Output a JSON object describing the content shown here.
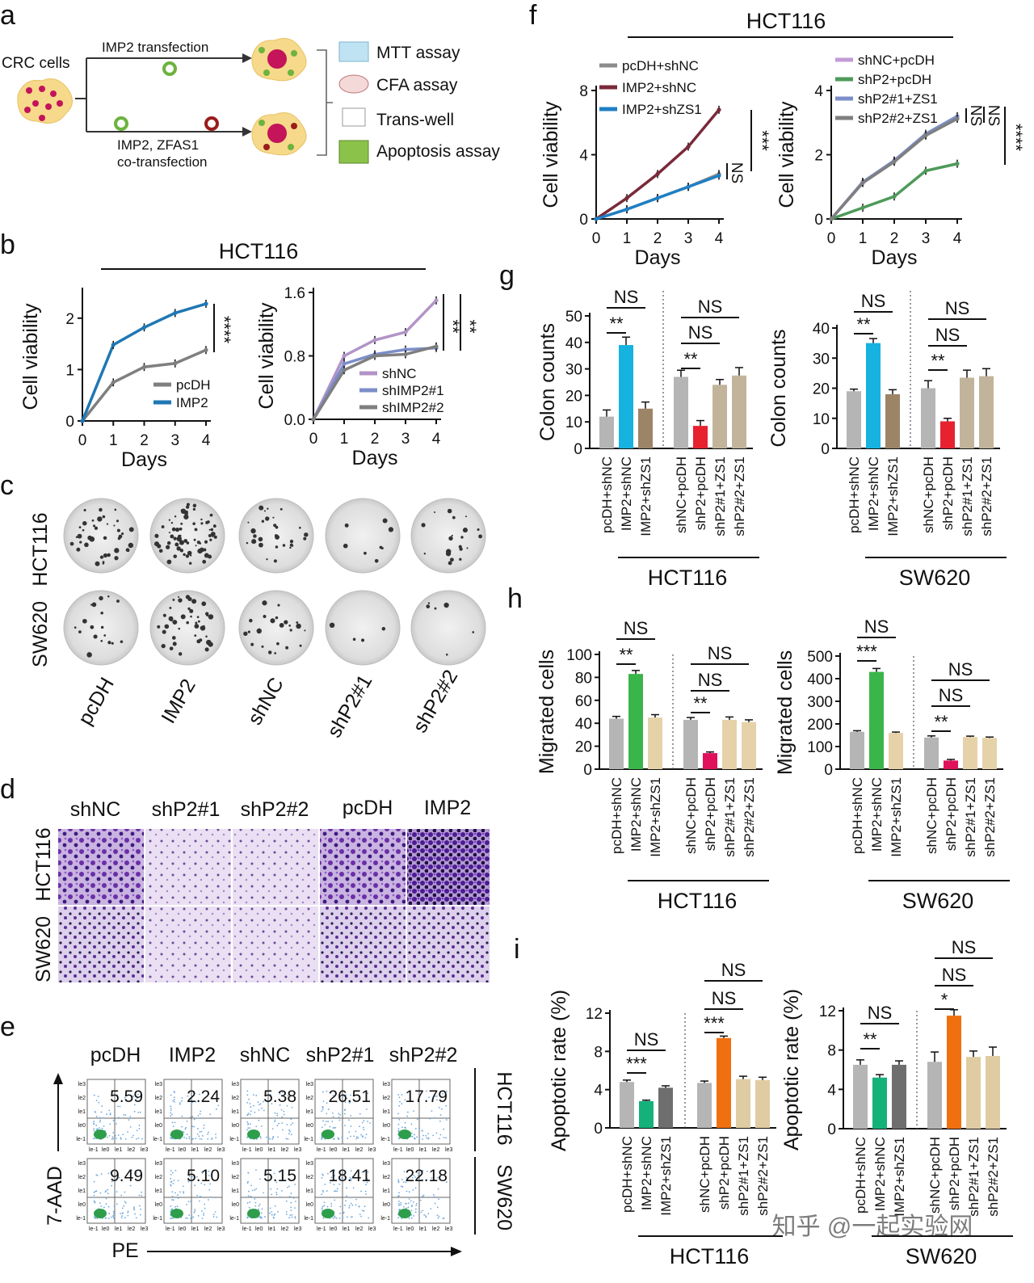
{
  "panels": {
    "a": "a",
    "b": "b",
    "c": "c",
    "d": "d",
    "e": "e",
    "f": "f",
    "g": "g",
    "h": "h",
    "i": "i"
  },
  "schematic": {
    "crc_label": "CRC cells",
    "transfection_top": "IMP2 transfection",
    "transfection_bottom_1": "IMP2, ZFAS1",
    "transfection_bottom_2": "co-transfection",
    "assays": [
      "MTT assay",
      "CFA assay",
      "Trans-well",
      "Apoptosis assay"
    ]
  },
  "common": {
    "cell_viability": "Cell viability",
    "days": "Days",
    "colon_counts": "Colon counts",
    "migrated_cells": "Migrated cells",
    "apoptotic_rate": "Apoptotic rate (%)",
    "hct116": "HCT116",
    "sw620": "SW620",
    "axis_7aad": "7-AAD",
    "axis_pe": "PE",
    "flow_ticks_x": [
      "le-1",
      "le0",
      "le1",
      "le2",
      "le3"
    ],
    "flow_ticks_y": [
      "le3",
      "le2",
      "le1",
      "le0",
      "le-1"
    ]
  },
  "colony_labels": [
    "pcDH",
    "IMP2",
    "shNC",
    "shP2#1",
    "shP2#2"
  ],
  "transwell_labels": [
    "shNC",
    "shP2#1",
    "shP2#2",
    "pcDH",
    "IMP2"
  ],
  "flow": {
    "labels": [
      "pcDH",
      "IMP2",
      "shNC",
      "shP2#1",
      "shP2#2"
    ],
    "hct116": [
      "5.59",
      "2.24",
      "5.38",
      "26.51",
      "17.79"
    ],
    "sw620": [
      "9.49",
      "5.10",
      "5.15",
      "18.41",
      "22.18"
    ]
  },
  "watermark": "知乎 @一起实验网",
  "chart_data": [
    {
      "id": "b-left",
      "type": "line",
      "title": "HCT116",
      "xlabel": "Days",
      "ylabel": "Cell viability",
      "x": [
        0,
        1,
        2,
        3,
        4
      ],
      "ylim": [
        0,
        2.5
      ],
      "yticks": [
        "0",
        "1",
        "2"
      ],
      "series": [
        {
          "name": "pcDH",
          "color": "#7f7f7f",
          "values": [
            0,
            0.75,
            1.05,
            1.12,
            1.38
          ]
        },
        {
          "name": "IMP2",
          "color": "#1f77b4",
          "values": [
            0,
            1.48,
            1.82,
            2.1,
            2.28
          ]
        }
      ],
      "significance": "****"
    },
    {
      "id": "b-right",
      "type": "line",
      "xlabel": "Days",
      "ylabel": "Cell viability",
      "x": [
        0,
        1,
        2,
        3,
        4
      ],
      "ylim": [
        0,
        1.6
      ],
      "yticks": [
        "0.0",
        "0.8",
        "1.6"
      ],
      "series": [
        {
          "name": "shNC",
          "color": "#b294c7",
          "values": [
            0,
            0.8,
            1.0,
            1.1,
            1.5
          ]
        },
        {
          "name": "shIMP2#1",
          "color": "#7b8ec9",
          "values": [
            0,
            0.7,
            0.82,
            0.88,
            0.9
          ]
        },
        {
          "name": "shIMP2#2",
          "color": "#7f7f7f",
          "values": [
            0,
            0.62,
            0.8,
            0.82,
            0.92
          ]
        }
      ],
      "significance": [
        "**",
        "**"
      ]
    },
    {
      "id": "f-left",
      "type": "line",
      "title": "HCT116",
      "xlabel": "Days",
      "ylabel": "Cell viability",
      "x": [
        0,
        1,
        2,
        3,
        4
      ],
      "ylim": [
        0,
        8
      ],
      "yticks": [
        "0",
        "4",
        "8"
      ],
      "series": [
        {
          "name": "pcDH+shNC",
          "color": "#8c8c8c",
          "values": [
            0,
            0.6,
            1.3,
            2.0,
            2.8
          ]
        },
        {
          "name": "IMP2+shNC",
          "color": "#7a2a3a",
          "values": [
            0,
            1.3,
            2.8,
            4.5,
            6.8
          ]
        },
        {
          "name": "IMP2+shZS1",
          "color": "#1f7fc4",
          "values": [
            0,
            0.6,
            1.3,
            2.0,
            2.7
          ]
        }
      ],
      "significance": [
        "NS",
        "***"
      ]
    },
    {
      "id": "f-right",
      "type": "line",
      "xlabel": "Days",
      "ylabel": "Cell viability",
      "x": [
        0,
        1,
        2,
        3,
        4
      ],
      "ylim": [
        0,
        4
      ],
      "yticks": [
        "0",
        "2",
        "4"
      ],
      "series": [
        {
          "name": "shNC+pcDH",
          "color": "#c49ad6",
          "values": [
            0,
            1.15,
            1.8,
            2.6,
            3.15
          ]
        },
        {
          "name": "shP2+pcDH",
          "color": "#4e9a5a",
          "values": [
            0,
            0.35,
            0.7,
            1.5,
            1.72
          ]
        },
        {
          "name": "shP2#1+ZS1",
          "color": "#7b8ec9",
          "values": [
            0,
            1.15,
            1.82,
            2.65,
            3.2
          ]
        },
        {
          "name": "shP2#2+ZS1",
          "color": "#7f7f7f",
          "values": [
            0,
            1.12,
            1.78,
            2.6,
            3.12
          ]
        }
      ],
      "significance": [
        "NS",
        "NS",
        "****"
      ]
    },
    {
      "id": "g-hct",
      "type": "bar",
      "xlabel": "HCT116",
      "ylabel": "Colon counts",
      "ylim": [
        0,
        50
      ],
      "yticks": [
        "0",
        "10",
        "20",
        "30",
        "40",
        "50"
      ],
      "categories": [
        "pcDH+shNC",
        "IMP2+shNC",
        "IMP2+shZS1",
        "shNC+pcDH",
        "shP2+pcDH",
        "shP2#1+ZS1",
        "shP2#2+ZS1"
      ],
      "values": [
        12,
        39,
        15,
        27,
        8.5,
        24,
        27.5
      ],
      "errors": [
        2.5,
        3,
        2.5,
        2.5,
        2,
        2,
        3
      ],
      "colors": [
        "#b5b5b5",
        "#16b2e0",
        "#9c8467",
        "#b5b5b5",
        "#e8212f",
        "#c2b49b",
        "#c2b49b"
      ],
      "brackets": [
        [
          "NS",
          "**"
        ],
        [
          "NS",
          "NS",
          "**"
        ]
      ]
    },
    {
      "id": "g-sw",
      "type": "bar",
      "xlabel": "SW620",
      "ylabel": "Colon counts",
      "ylim": [
        0,
        40
      ],
      "yticks": [
        "0",
        "10",
        "20",
        "30",
        "40"
      ],
      "categories": [
        "pcDH+shNC",
        "IMP2+shNC",
        "IMP2+shZS1",
        "shNC+pcDH",
        "shP2+pcDH",
        "shP2#1+ZS1",
        "shP2#2+ZS1"
      ],
      "values": [
        19,
        35,
        18,
        20,
        9,
        23.5,
        24
      ],
      "errors": [
        0.7,
        1.5,
        1.5,
        2.5,
        1,
        2.5,
        2.5
      ],
      "colors": [
        "#b5b5b5",
        "#16b2e0",
        "#9c8467",
        "#b5b5b5",
        "#e8212f",
        "#c2b49b",
        "#c2b49b"
      ],
      "brackets": [
        [
          "NS",
          "**"
        ],
        [
          "NS",
          "NS",
          "**"
        ]
      ]
    },
    {
      "id": "h-hct",
      "type": "bar",
      "xlabel": "HCT116",
      "ylabel": "Migrated cells",
      "ylim": [
        0,
        100
      ],
      "yticks": [
        "0",
        "20",
        "40",
        "60",
        "80",
        "100"
      ],
      "categories": [
        "pcDH+shNC",
        "IMP2+shNC",
        "IMP2+shZS1",
        "shNC+pcDH",
        "shP2+pcDH",
        "shP2#1+ZS1",
        "shP2#2+ZS1"
      ],
      "values": [
        44,
        83,
        45,
        43,
        14,
        43,
        41
      ],
      "errors": [
        2,
        3,
        2.5,
        2,
        1,
        2.5,
        2
      ],
      "colors": [
        "#b5b5b5",
        "#3ab54a",
        "#e6d2a8",
        "#b5b5b5",
        "#e0105a",
        "#e6d2a8",
        "#e6d2a8"
      ],
      "brackets": [
        [
          "NS",
          "**"
        ],
        [
          "NS",
          "NS",
          "**"
        ]
      ]
    },
    {
      "id": "h-sw",
      "type": "bar",
      "xlabel": "SW620",
      "ylabel": "Migrated cells",
      "ylim": [
        0,
        500
      ],
      "yticks": [
        "0",
        "100",
        "200",
        "300",
        "400",
        "500"
      ],
      "categories": [
        "pcDH+shNC",
        "IMP2+shNC",
        "IMP2+shZS1",
        "shNC+pcDH",
        "shP2+pcDH",
        "shP2#1+ZS1",
        "shP2#2+ZS1"
      ],
      "values": [
        165,
        430,
        160,
        140,
        38,
        142,
        138
      ],
      "errors": [
        5,
        15,
        4,
        7,
        5,
        4,
        4
      ],
      "colors": [
        "#b5b5b5",
        "#3ab54a",
        "#e6d2a8",
        "#b5b5b5",
        "#e0105a",
        "#e6d2a8",
        "#e6d2a8"
      ],
      "brackets": [
        [
          "NS",
          "***"
        ],
        [
          "NS",
          "NS",
          "**"
        ]
      ]
    },
    {
      "id": "i-hct",
      "type": "bar",
      "xlabel": "HCT116",
      "ylabel": "Apoptotic rate (%)",
      "ylim": [
        0,
        12
      ],
      "yticks": [
        "0",
        "4",
        "8",
        "12"
      ],
      "categories": [
        "pcDH+shNC",
        "IMP2+shNC",
        "IMP2+shZS1",
        "shNC+pcDH",
        "shP2+pcDH",
        "shP2#1+ZS1",
        "shP2#2+ZS1"
      ],
      "values": [
        4.8,
        2.8,
        4.2,
        4.7,
        9.4,
        5.1,
        5.0
      ],
      "errors": [
        0.2,
        0.1,
        0.2,
        0.2,
        0.2,
        0.3,
        0.3
      ],
      "colors": [
        "#b5b5b5",
        "#14b27a",
        "#6e6e6e",
        "#b5b5b5",
        "#f07010",
        "#e0cca2",
        "#e0cca2"
      ],
      "brackets": [
        [
          "NS",
          "***"
        ],
        [
          "NS",
          "NS",
          "***"
        ]
      ]
    },
    {
      "id": "i-sw",
      "type": "bar",
      "xlabel": "SW620",
      "ylabel": "Apoptotic rate (%)",
      "ylim": [
        0,
        12
      ],
      "yticks": [
        "0",
        "4",
        "8",
        "12"
      ],
      "categories": [
        "pcDH+shNC",
        "IMP2+shNC",
        "IMP2+shZS1",
        "shNC+pcDH",
        "shP2+pcDH",
        "shP2#1+ZS1",
        "shP2#2+ZS1"
      ],
      "values": [
        6.5,
        5.2,
        6.5,
        6.8,
        11.5,
        7.3,
        7.4
      ],
      "errors": [
        0.5,
        0.3,
        0.4,
        1.0,
        0.6,
        0.6,
        0.9
      ],
      "colors": [
        "#b5b5b5",
        "#14b27a",
        "#6e6e6e",
        "#b5b5b5",
        "#f07010",
        "#e0cca2",
        "#e0cca2"
      ],
      "brackets": [
        [
          "NS",
          "**"
        ],
        [
          "NS",
          "NS",
          "*"
        ]
      ]
    }
  ]
}
